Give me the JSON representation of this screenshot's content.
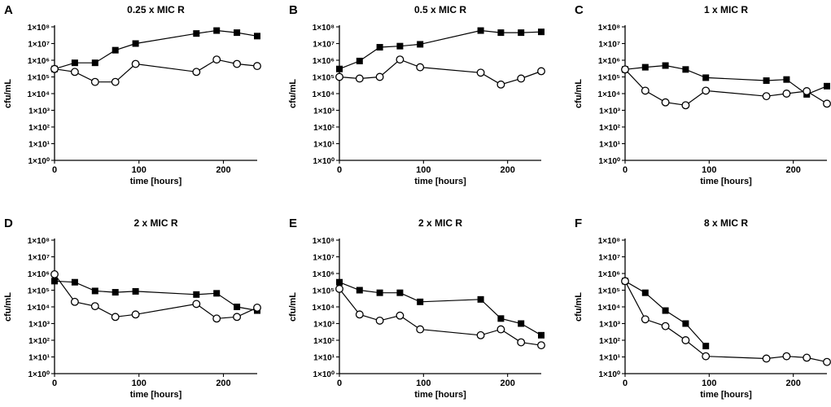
{
  "figure": {
    "ytick_labels": [
      "1×10⁰",
      "1×10¹",
      "1×10²",
      "1×10³",
      "1×10⁴",
      "1×10⁵",
      "1×10⁶",
      "1×10⁷",
      "1×10⁸"
    ],
    "xtick_labels": [
      "0",
      "100",
      "200"
    ]
  },
  "chart_data": [
    {
      "type": "line",
      "letter": "A",
      "title": "0.25 x MIC R",
      "xlabel": "time [hours]",
      "ylabel": "cfu/mL",
      "yscale": "log",
      "xlim": [
        0,
        240
      ],
      "ylim_log10": [
        0,
        8
      ],
      "xticks": [
        0,
        100,
        200
      ],
      "series": [
        {
          "name": "squares",
          "marker": "filled-square",
          "x": [
            0,
            24,
            48,
            72,
            96,
            168,
            192,
            216,
            240
          ],
          "y": [
            300000,
            700000,
            700000,
            4000000,
            10000000,
            40000000,
            60000000,
            45000000,
            28000000
          ]
        },
        {
          "name": "circles",
          "marker": "open-circle",
          "x": [
            0,
            24,
            48,
            72,
            96,
            168,
            192,
            216,
            240
          ],
          "y": [
            300000,
            200000,
            50000,
            50000,
            600000,
            200000,
            1100000,
            600000,
            450000
          ]
        }
      ]
    },
    {
      "type": "line",
      "letter": "B",
      "title": "0.5 x MIC R",
      "xlabel": "time [hours]",
      "ylabel": "cfu/mL",
      "yscale": "log",
      "xlim": [
        0,
        240
      ],
      "ylim_log10": [
        0,
        8
      ],
      "xticks": [
        0,
        100,
        200
      ],
      "series": [
        {
          "name": "squares",
          "marker": "filled-square",
          "x": [
            0,
            24,
            48,
            72,
            96,
            168,
            192,
            216,
            240
          ],
          "y": [
            300000,
            900000,
            6000000,
            7000000,
            9000000,
            60000000,
            45000000,
            45000000,
            50000000
          ]
        },
        {
          "name": "circles",
          "marker": "open-circle",
          "x": [
            0,
            24,
            48,
            72,
            96,
            168,
            192,
            216,
            240
          ],
          "y": [
            100000,
            80000,
            100000,
            1100000,
            380000,
            180000,
            35000,
            80000,
            220000
          ]
        }
      ]
    },
    {
      "type": "line",
      "letter": "C",
      "title": "1 x MIC R",
      "xlabel": "time [hours]",
      "ylabel": "cfu/mL",
      "yscale": "log",
      "xlim": [
        0,
        240
      ],
      "ylim_log10": [
        0,
        8
      ],
      "xticks": [
        0,
        100,
        200
      ],
      "series": [
        {
          "name": "squares",
          "marker": "filled-square",
          "x": [
            0,
            24,
            48,
            72,
            96,
            168,
            192,
            216,
            240
          ],
          "y": [
            280000,
            380000,
            480000,
            280000,
            90000,
            60000,
            70000,
            9000,
            28000
          ]
        },
        {
          "name": "circles",
          "marker": "open-circle",
          "x": [
            0,
            24,
            48,
            72,
            96,
            168,
            192,
            216,
            240
          ],
          "y": [
            280000,
            15000,
            3000,
            2000,
            15000,
            7000,
            10000,
            14000,
            2500
          ]
        }
      ]
    },
    {
      "type": "line",
      "letter": "D",
      "title": "2 x MIC R",
      "xlabel": "time [hours]",
      "ylabel": "cfu/mL",
      "yscale": "log",
      "xlim": [
        0,
        240
      ],
      "ylim_log10": [
        0,
        8
      ],
      "xticks": [
        0,
        100,
        200
      ],
      "series": [
        {
          "name": "squares",
          "marker": "filled-square",
          "x": [
            0,
            24,
            48,
            72,
            96,
            168,
            192,
            216,
            240
          ],
          "y": [
            350000,
            300000,
            90000,
            75000,
            85000,
            55000,
            65000,
            10000,
            6000
          ]
        },
        {
          "name": "circles",
          "marker": "open-circle",
          "x": [
            0,
            24,
            48,
            72,
            96,
            168,
            192,
            216,
            240
          ],
          "y": [
            900000,
            20000,
            11000,
            2500,
            3500,
            15000,
            2000,
            2500,
            9000
          ]
        }
      ]
    },
    {
      "type": "line",
      "letter": "E",
      "title": "2 x MIC R",
      "xlabel": "time [hours]",
      "ylabel": "cfu/mL",
      "yscale": "log",
      "xlim": [
        0,
        240
      ],
      "ylim_log10": [
        0,
        8
      ],
      "xticks": [
        0,
        100,
        200
      ],
      "series": [
        {
          "name": "squares",
          "marker": "filled-square",
          "x": [
            0,
            24,
            48,
            72,
            96,
            168,
            192,
            216,
            240
          ],
          "y": [
            300000,
            100000,
            70000,
            70000,
            20000,
            28000,
            2000,
            1000,
            200
          ]
        },
        {
          "name": "circles",
          "marker": "open-circle",
          "x": [
            0,
            24,
            48,
            72,
            96,
            168,
            192,
            216,
            240
          ],
          "y": [
            120000,
            3500,
            1500,
            3000,
            450,
            200,
            450,
            75,
            50
          ]
        }
      ]
    },
    {
      "type": "line",
      "letter": "F",
      "title": "8 x MIC R",
      "xlabel": "time [hours]",
      "ylabel": "cfu/mL",
      "yscale": "log",
      "xlim": [
        0,
        240
      ],
      "ylim_log10": [
        0,
        8
      ],
      "xticks": [
        0,
        100,
        200
      ],
      "series": [
        {
          "name": "squares",
          "marker": "filled-square",
          "x": [
            0,
            24,
            48,
            72,
            96
          ],
          "y": [
            350000,
            70000,
            6000,
            1000,
            45
          ]
        },
        {
          "name": "circles",
          "marker": "open-circle",
          "x": [
            0,
            24,
            48,
            72,
            96,
            168,
            192,
            216,
            240
          ],
          "y": [
            350000,
            1800,
            700,
            100,
            11,
            8,
            11,
            9,
            5
          ]
        }
      ]
    }
  ]
}
